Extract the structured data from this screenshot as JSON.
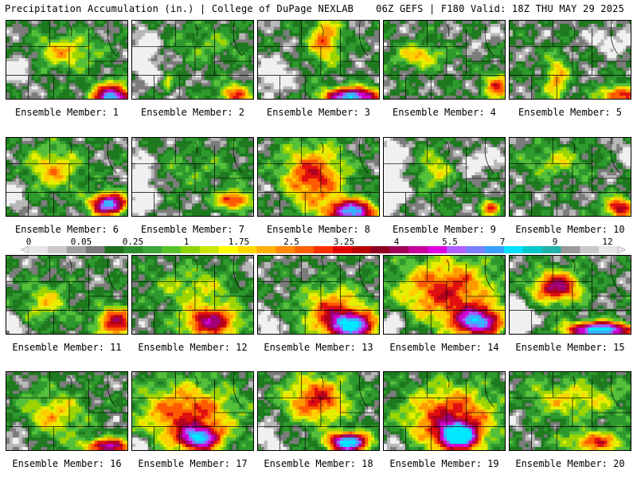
{
  "header": {
    "left": "Precipitation Accumulation (in.) | College of DuPage NEXLAB",
    "right": "06Z GEFS | F180 Valid: 18Z THU MAY 29 2025"
  },
  "colorbar": {
    "labels": [
      "0",
      "0.05",
      "0.25",
      "1",
      "1.75",
      "2.5",
      "3.25",
      "4",
      "5.5",
      "7",
      "9",
      "12"
    ],
    "colors": [
      "#e6e6e6",
      "#c8c8c8",
      "#a0a0a0",
      "#7a7a7a",
      "#1f6f1f",
      "#2e8b2e",
      "#3aa63a",
      "#57c22a",
      "#8fd400",
      "#c8e600",
      "#ffff00",
      "#ffd800",
      "#ffb000",
      "#ff8800",
      "#ff6000",
      "#ff3000",
      "#e00000",
      "#b80000",
      "#900020",
      "#a0005a",
      "#c8009c",
      "#e000e0",
      "#b060ff",
      "#7a80ff",
      "#3aa0ff",
      "#00e0ff",
      "#00c8c8",
      "#20b2aa",
      "#9a9a9a",
      "#c8c8c8",
      "#e6e6e6"
    ]
  },
  "members": [
    {
      "caption": "Ensemble Member: 1"
    },
    {
      "caption": "Ensemble Member: 2"
    },
    {
      "caption": "Ensemble Member: 3"
    },
    {
      "caption": "Ensemble Member: 4"
    },
    {
      "caption": "Ensemble Member: 5"
    },
    {
      "caption": "Ensemble Member: 6"
    },
    {
      "caption": "Ensemble Member: 7"
    },
    {
      "caption": "Ensemble Member: 8"
    },
    {
      "caption": "Ensemble Member: 9"
    },
    {
      "caption": "Ensemble Member: 10"
    },
    {
      "caption": "Ensemble Member: 11"
    },
    {
      "caption": "Ensemble Member: 12"
    },
    {
      "caption": "Ensemble Member: 13"
    },
    {
      "caption": "Ensemble Member: 14"
    },
    {
      "caption": "Ensemble Member: 15"
    },
    {
      "caption": "Ensemble Member: 16"
    },
    {
      "caption": "Ensemble Member: 17"
    },
    {
      "caption": "Ensemble Member: 18"
    },
    {
      "caption": "Ensemble Member: 19"
    },
    {
      "caption": "Ensemble Member: 20"
    }
  ]
}
